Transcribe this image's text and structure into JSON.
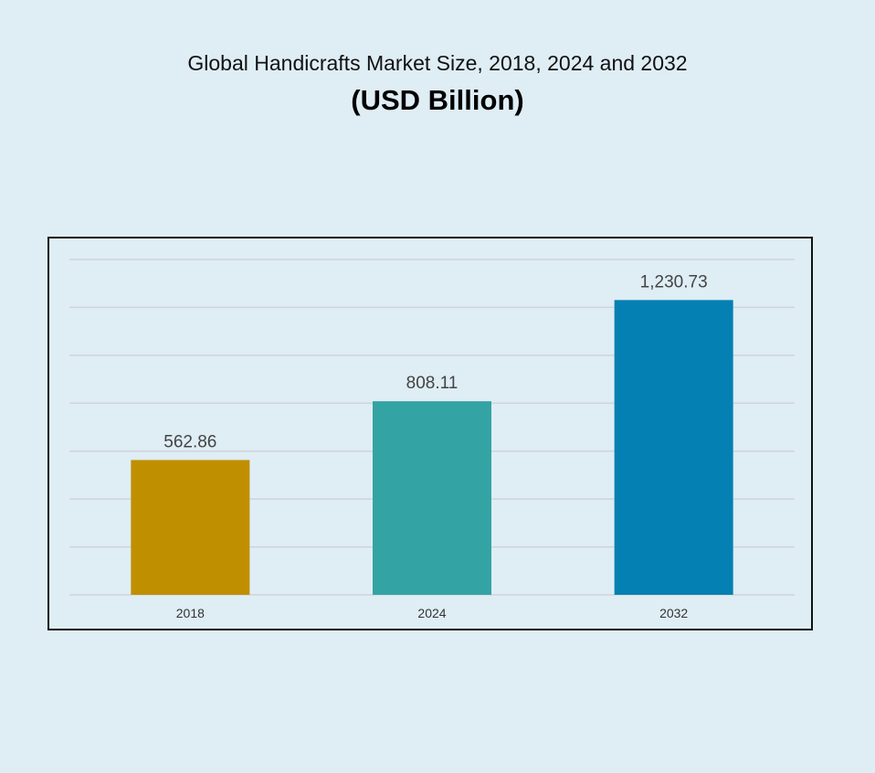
{
  "chart_data": {
    "type": "bar",
    "title": "Global Handicrafts Market Size, 2018, 2024 and 2032",
    "subtitle": "(USD Billion)",
    "categories": [
      "2018",
      "2024",
      "2032"
    ],
    "values": [
      562.86,
      808.11,
      1230.73
    ],
    "data_labels": [
      "562.86",
      "808.11",
      "1,230.73"
    ],
    "colors": [
      "#c08f00",
      "#33a3a4",
      "#0580b2"
    ],
    "ylim": [
      0,
      1400
    ],
    "grid": true,
    "legend": "none"
  }
}
